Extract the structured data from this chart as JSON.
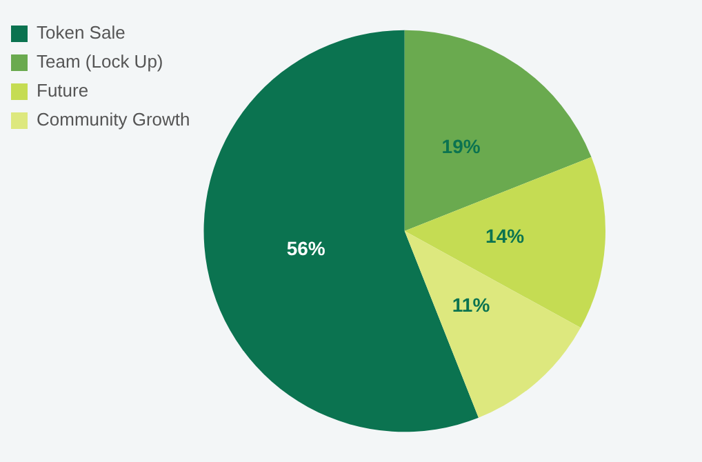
{
  "chart_data": {
    "type": "pie",
    "categories": [
      "Token Sale",
      "Team (Lock Up)",
      "Future",
      "Community Growth"
    ],
    "values": [
      56,
      19,
      14,
      11
    ],
    "colors": [
      "#0b7350",
      "#6aaa4f",
      "#c5dc53",
      "#dde87e"
    ],
    "value_labels": [
      "56%",
      "19%",
      "14%",
      "11%"
    ],
    "legend": "top left"
  }
}
